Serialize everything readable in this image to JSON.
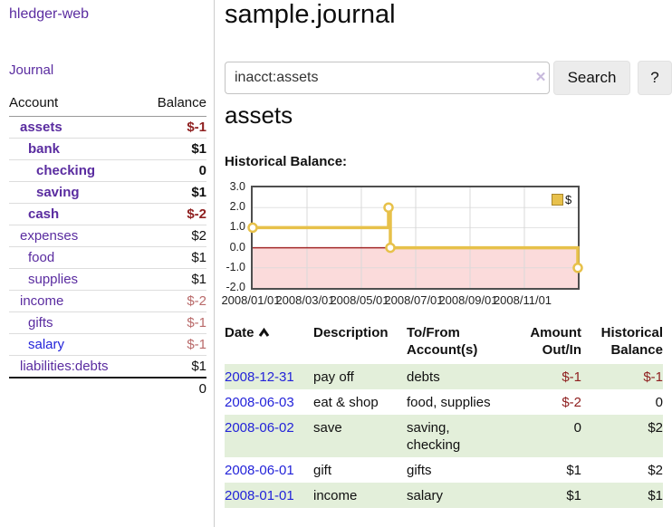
{
  "colors": {
    "link_purple": "#5a2ca0",
    "link_blue": "#2323d9",
    "negative_red": "#8f2020",
    "muted_negative_red": "#b96a6a",
    "row_green": "#e3efda",
    "chart_negative_bg": "#fbdbdb",
    "chart_zero_line": "#a32929",
    "chart_line_gold": "#e7c14a",
    "button_bg": "#ececec"
  },
  "sidebar": {
    "brand": "hledger-web",
    "nav_journal": "Journal",
    "headers": {
      "account": "Account",
      "balance": "Balance"
    },
    "accounts": [
      {
        "name": "assets",
        "balance": "$-1"
      },
      {
        "name": "bank",
        "balance": "$1"
      },
      {
        "name": "checking",
        "balance": "0"
      },
      {
        "name": "saving",
        "balance": "$1"
      },
      {
        "name": "cash",
        "balance": "$-2"
      },
      {
        "name": "expenses",
        "balance": "$2"
      },
      {
        "name": "food",
        "balance": "$1"
      },
      {
        "name": "supplies",
        "balance": "$1"
      },
      {
        "name": "income",
        "balance": "$-2"
      },
      {
        "name": "gifts",
        "balance": "$-1"
      },
      {
        "name": "salary",
        "balance": "$-1"
      },
      {
        "name": "liabilities:debts",
        "balance": "$1"
      }
    ],
    "total": "0"
  },
  "main": {
    "title": "sample.journal",
    "search": {
      "value": "inacct:assets",
      "clear_icon": "✕",
      "button_label": "Search",
      "help_label": "?"
    },
    "account_heading": "assets",
    "chart_title": "Historical Balance:"
  },
  "chart_data": {
    "type": "line",
    "step": true,
    "title": "Historical Balance",
    "x": [
      "2008-01-01",
      "2008-06-01",
      "2008-06-03",
      "2008-12-31"
    ],
    "series": [
      {
        "name": "$",
        "values": [
          1,
          2,
          0,
          -1
        ]
      }
    ],
    "ylim": [
      -2,
      3
    ],
    "yticks": [
      "3.0",
      "2.0",
      "1.0",
      "0.0",
      "-1.0",
      "-2.0"
    ],
    "xticks": [
      "2008/01/01",
      "2008/03/01",
      "2008/05/01",
      "2008/07/01",
      "2008/09/01",
      "2008/11/01"
    ],
    "legend": {
      "position": "top-right",
      "entries": [
        "$"
      ]
    },
    "grid": true
  },
  "register": {
    "headers": {
      "date": "Date",
      "description": "Description",
      "tofrom": "To/From Account(s)",
      "amount": "Amount Out/In",
      "historical": "Historical Balance"
    },
    "rows": [
      {
        "date": "2008-12-31",
        "description": "pay off",
        "tofrom": "debts",
        "amount": "$-1",
        "historical": "$-1"
      },
      {
        "date": "2008-06-03",
        "description": "eat & shop",
        "tofrom": "food, supplies",
        "amount": "$-2",
        "historical": "0"
      },
      {
        "date": "2008-06-02",
        "description": "save",
        "tofrom": "saving, checking",
        "amount": "0",
        "historical": "$2"
      },
      {
        "date": "2008-06-01",
        "description": "gift",
        "tofrom": "gifts",
        "amount": "$1",
        "historical": "$2"
      },
      {
        "date": "2008-01-01",
        "description": "income",
        "tofrom": "salary",
        "amount": "$1",
        "historical": "$1"
      }
    ]
  }
}
